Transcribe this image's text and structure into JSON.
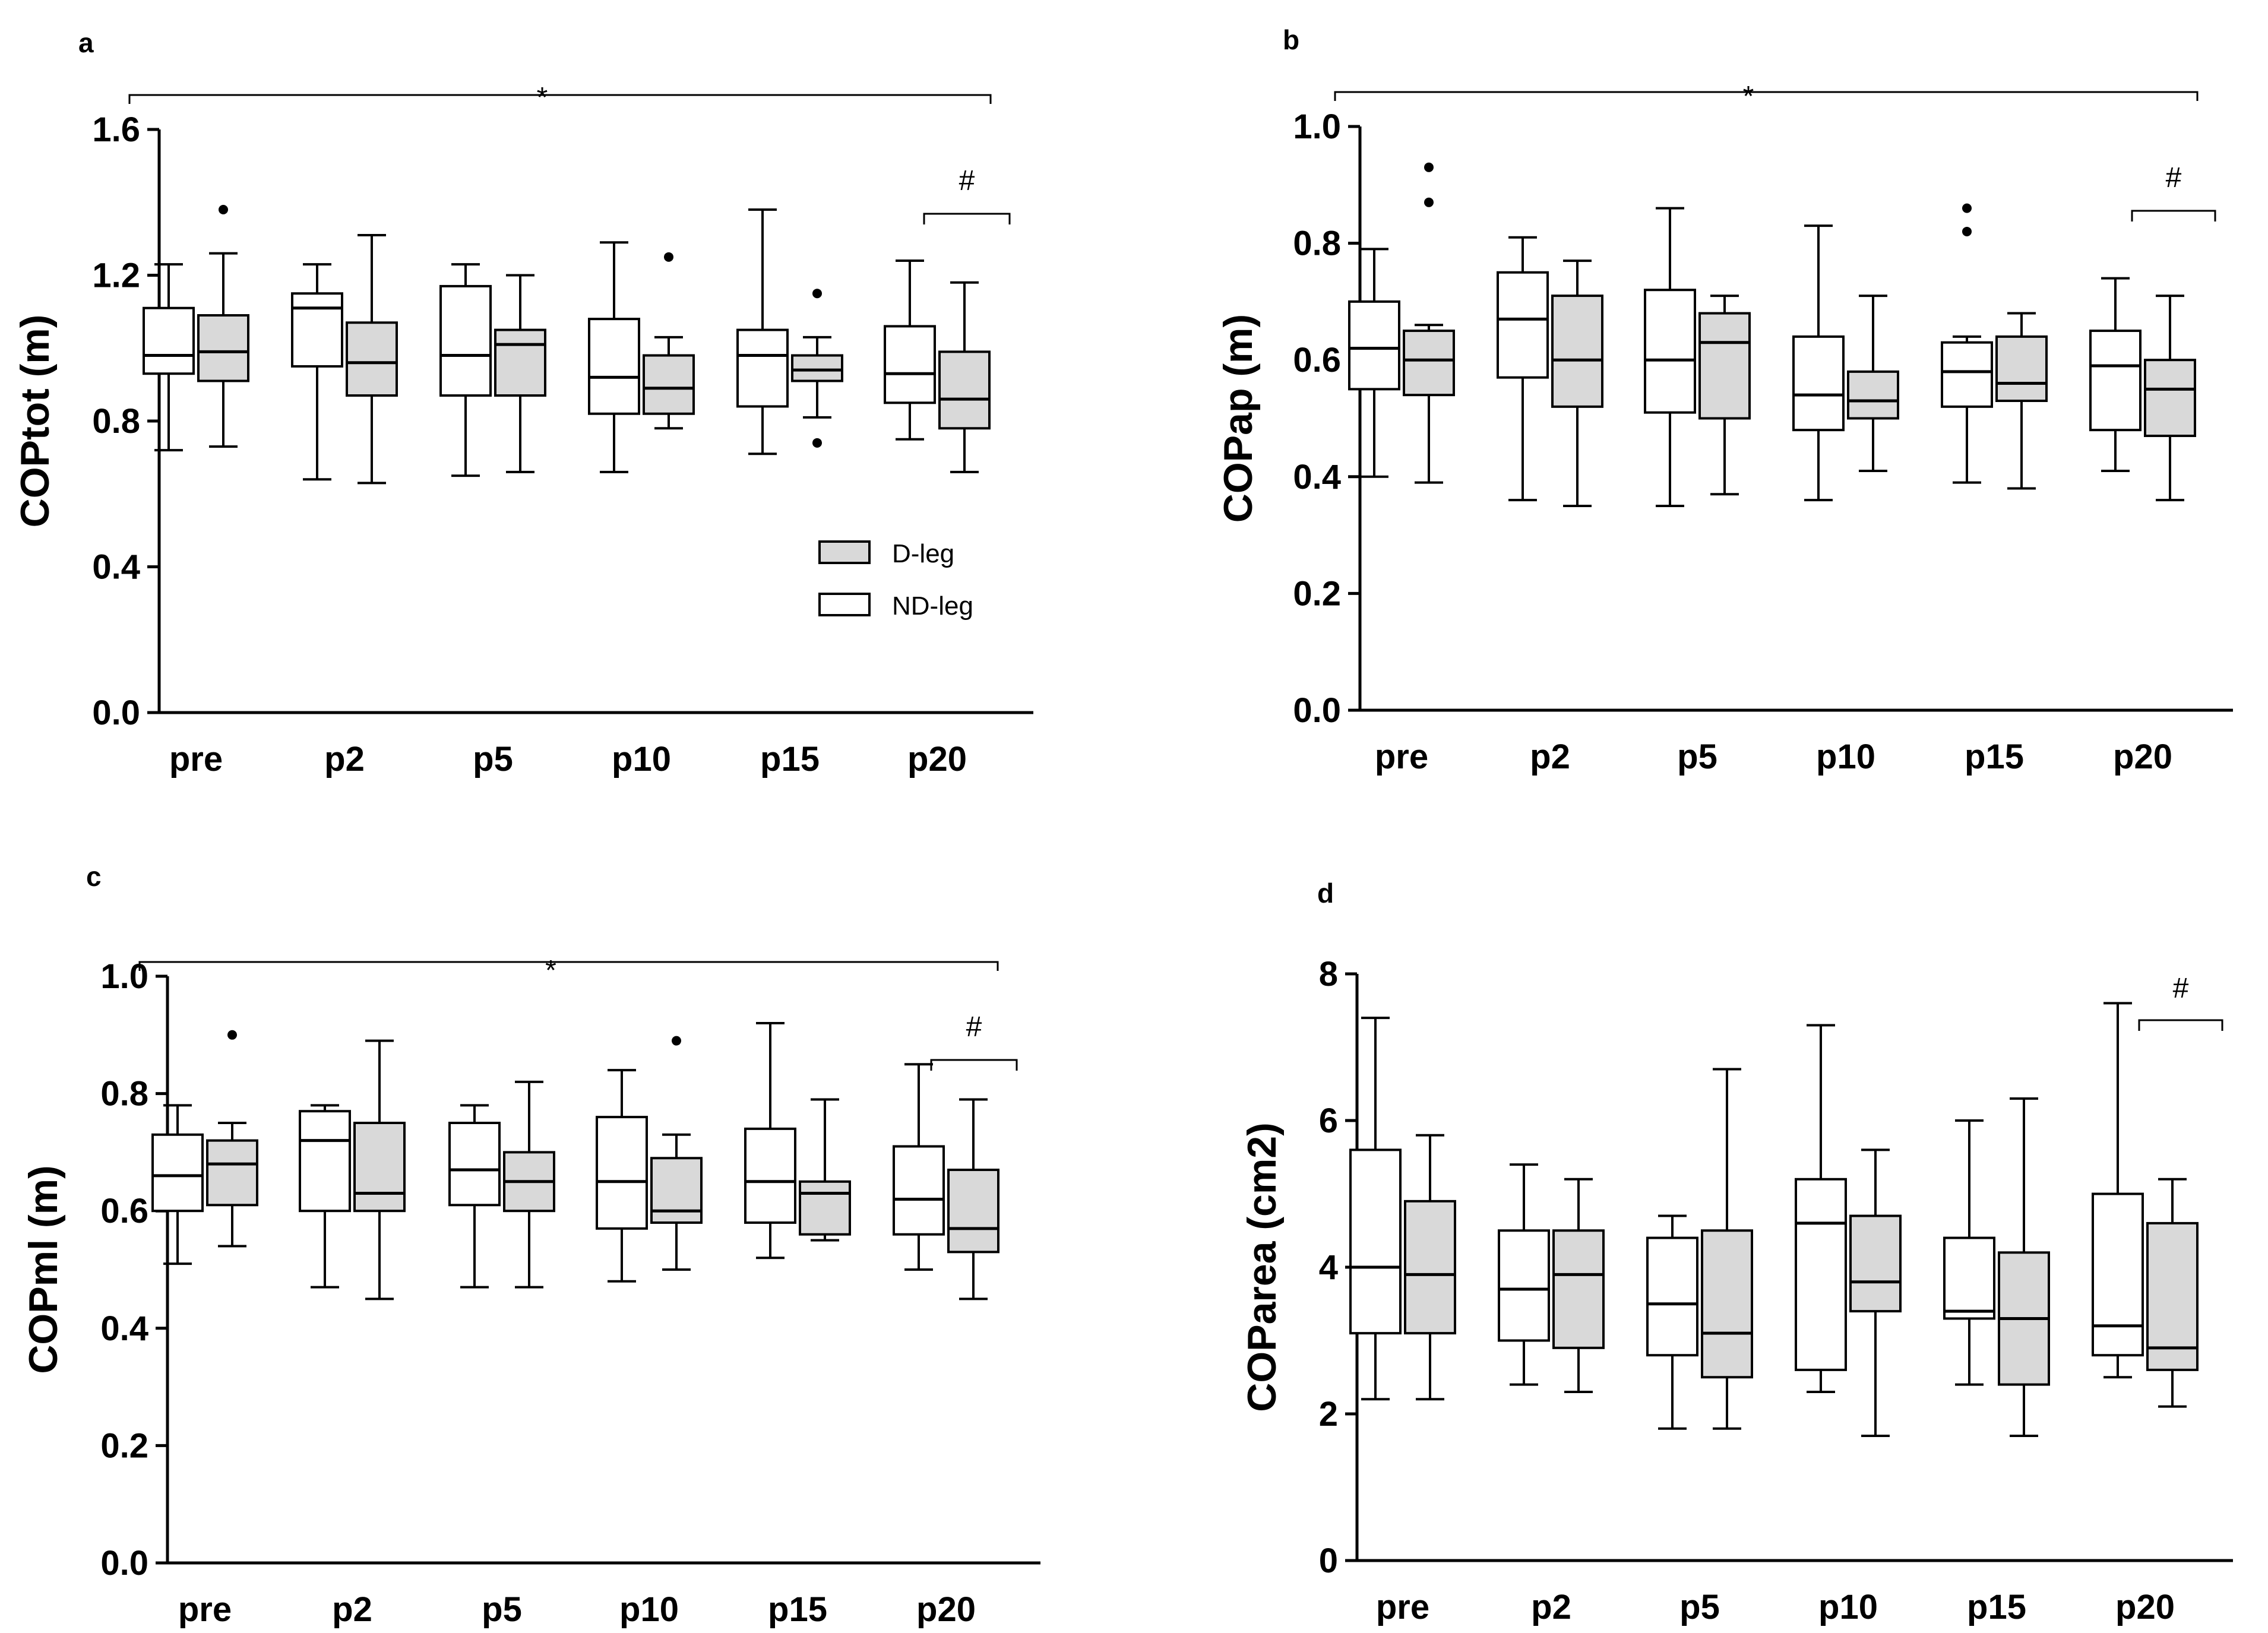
{
  "figure": {
    "legend": {
      "d_leg": "D-leg",
      "nd_leg": "ND-leg"
    }
  },
  "style": {
    "d_leg_fill": "#d9d9d9",
    "nd_leg_fill": "#ffffff",
    "stroke": "#000000"
  },
  "chart_data": [
    {
      "id": "a",
      "type": "boxplot",
      "panel_label": "a",
      "ylabel": "COPtot (m)",
      "ylim": [
        0,
        1.6
      ],
      "yticks": [
        0.0,
        0.4,
        0.8,
        1.2,
        1.6
      ],
      "ytick_labels": [
        "0.0",
        "0.4",
        "0.8",
        "1.2",
        "1.6"
      ],
      "categories": [
        "pre",
        "p2",
        "p5",
        "p10",
        "p15",
        "p20"
      ],
      "legend": true,
      "significance": {
        "star": {
          "label": "*",
          "from": "pre",
          "to": "p20"
        },
        "hash": {
          "label": "#",
          "at": "p20"
        }
      },
      "series": [
        {
          "name": "ND-leg",
          "boxes": [
            {
              "min": 0.72,
              "q1": 0.93,
              "median": 0.98,
              "q3": 1.11,
              "max": 1.23,
              "outliers": []
            },
            {
              "min": 0.64,
              "q1": 0.95,
              "median": 1.11,
              "q3": 1.15,
              "max": 1.23,
              "outliers": []
            },
            {
              "min": 0.65,
              "q1": 0.87,
              "median": 0.98,
              "q3": 1.17,
              "max": 1.23,
              "outliers": []
            },
            {
              "min": 0.66,
              "q1": 0.82,
              "median": 0.92,
              "q3": 1.08,
              "max": 1.29,
              "outliers": []
            },
            {
              "min": 0.71,
              "q1": 0.84,
              "median": 0.98,
              "q3": 1.05,
              "max": 1.38,
              "outliers": []
            },
            {
              "min": 0.75,
              "q1": 0.85,
              "median": 0.93,
              "q3": 1.06,
              "max": 1.24,
              "outliers": []
            }
          ]
        },
        {
          "name": "D-leg",
          "boxes": [
            {
              "min": 0.73,
              "q1": 0.91,
              "median": 0.99,
              "q3": 1.09,
              "max": 1.26,
              "outliers": [
                1.38
              ]
            },
            {
              "min": 0.63,
              "q1": 0.87,
              "median": 0.96,
              "q3": 1.07,
              "max": 1.31,
              "outliers": []
            },
            {
              "min": 0.66,
              "q1": 0.87,
              "median": 1.01,
              "q3": 1.05,
              "max": 1.2,
              "outliers": []
            },
            {
              "min": 0.78,
              "q1": 0.82,
              "median": 0.89,
              "q3": 0.98,
              "max": 1.03,
              "outliers": [
                1.25
              ]
            },
            {
              "min": 0.81,
              "q1": 0.91,
              "median": 0.94,
              "q3": 0.98,
              "max": 1.03,
              "outliers": [
                1.15,
                0.74
              ]
            },
            {
              "min": 0.66,
              "q1": 0.78,
              "median": 0.86,
              "q3": 0.99,
              "max": 1.18,
              "outliers": []
            }
          ]
        }
      ]
    },
    {
      "id": "b",
      "type": "boxplot",
      "panel_label": "b",
      "ylabel": "COPap (m)",
      "ylim": [
        0,
        1.0
      ],
      "yticks": [
        0.0,
        0.2,
        0.4,
        0.6,
        0.8,
        1.0
      ],
      "ytick_labels": [
        "0.0",
        "0.2",
        "0.4",
        "0.6",
        "0.8",
        "1.0"
      ],
      "categories": [
        "pre",
        "p2",
        "p5",
        "p10",
        "p15",
        "p20"
      ],
      "legend": false,
      "significance": {
        "star": {
          "label": "*",
          "from": "pre",
          "to": "p20"
        },
        "hash": {
          "label": "#",
          "at": "p20"
        }
      },
      "series": [
        {
          "name": "ND-leg",
          "boxes": [
            {
              "min": 0.4,
              "q1": 0.55,
              "median": 0.62,
              "q3": 0.7,
              "max": 0.79,
              "outliers": []
            },
            {
              "min": 0.36,
              "q1": 0.57,
              "median": 0.67,
              "q3": 0.75,
              "max": 0.81,
              "outliers": []
            },
            {
              "min": 0.35,
              "q1": 0.51,
              "median": 0.6,
              "q3": 0.72,
              "max": 0.86,
              "outliers": []
            },
            {
              "min": 0.36,
              "q1": 0.48,
              "median": 0.54,
              "q3": 0.64,
              "max": 0.83,
              "outliers": []
            },
            {
              "min": 0.39,
              "q1": 0.52,
              "median": 0.58,
              "q3": 0.63,
              "max": 0.64,
              "outliers": [
                0.86,
                0.82
              ]
            },
            {
              "min": 0.41,
              "q1": 0.48,
              "median": 0.59,
              "q3": 0.65,
              "max": 0.74,
              "outliers": []
            }
          ]
        },
        {
          "name": "D-leg",
          "boxes": [
            {
              "min": 0.39,
              "q1": 0.54,
              "median": 0.6,
              "q3": 0.65,
              "max": 0.66,
              "outliers": [
                0.93,
                0.87
              ]
            },
            {
              "min": 0.35,
              "q1": 0.52,
              "median": 0.6,
              "q3": 0.71,
              "max": 0.77,
              "outliers": []
            },
            {
              "min": 0.37,
              "q1": 0.5,
              "median": 0.63,
              "q3": 0.68,
              "max": 0.71,
              "outliers": []
            },
            {
              "min": 0.41,
              "q1": 0.5,
              "median": 0.53,
              "q3": 0.58,
              "max": 0.71,
              "outliers": []
            },
            {
              "min": 0.38,
              "q1": 0.53,
              "median": 0.56,
              "q3": 0.64,
              "max": 0.68,
              "outliers": []
            },
            {
              "min": 0.36,
              "q1": 0.47,
              "median": 0.55,
              "q3": 0.6,
              "max": 0.71,
              "outliers": []
            }
          ]
        }
      ]
    },
    {
      "id": "c",
      "type": "boxplot",
      "panel_label": "c",
      "ylabel": "COPml (m)",
      "ylim": [
        0,
        1.0
      ],
      "yticks": [
        0.0,
        0.2,
        0.4,
        0.6,
        0.8,
        1.0
      ],
      "ytick_labels": [
        "0.0",
        "0.2",
        "0.4",
        "0.6",
        "0.8",
        "1.0"
      ],
      "categories": [
        "pre",
        "p2",
        "p5",
        "p10",
        "p15",
        "p20"
      ],
      "legend": false,
      "significance": {
        "star": {
          "label": "*",
          "from": "pre",
          "to": "p20"
        },
        "hash": {
          "label": "#",
          "at": "p20"
        }
      },
      "series": [
        {
          "name": "ND-leg",
          "boxes": [
            {
              "min": 0.51,
              "q1": 0.6,
              "median": 0.66,
              "q3": 0.73,
              "max": 0.78,
              "outliers": []
            },
            {
              "min": 0.47,
              "q1": 0.6,
              "median": 0.72,
              "q3": 0.77,
              "max": 0.78,
              "outliers": []
            },
            {
              "min": 0.47,
              "q1": 0.61,
              "median": 0.67,
              "q3": 0.75,
              "max": 0.78,
              "outliers": []
            },
            {
              "min": 0.48,
              "q1": 0.57,
              "median": 0.65,
              "q3": 0.76,
              "max": 0.84,
              "outliers": []
            },
            {
              "min": 0.52,
              "q1": 0.58,
              "median": 0.65,
              "q3": 0.74,
              "max": 0.92,
              "outliers": []
            },
            {
              "min": 0.5,
              "q1": 0.56,
              "median": 0.62,
              "q3": 0.71,
              "max": 0.85,
              "outliers": []
            }
          ]
        },
        {
          "name": "D-leg",
          "boxes": [
            {
              "min": 0.54,
              "q1": 0.61,
              "median": 0.68,
              "q3": 0.72,
              "max": 0.75,
              "outliers": [
                0.9
              ]
            },
            {
              "min": 0.45,
              "q1": 0.6,
              "median": 0.63,
              "q3": 0.75,
              "max": 0.89,
              "outliers": []
            },
            {
              "min": 0.47,
              "q1": 0.6,
              "median": 0.65,
              "q3": 0.7,
              "max": 0.82,
              "outliers": []
            },
            {
              "min": 0.5,
              "q1": 0.58,
              "median": 0.6,
              "q3": 0.69,
              "max": 0.73,
              "outliers": [
                0.89
              ]
            },
            {
              "min": 0.55,
              "q1": 0.56,
              "median": 0.63,
              "q3": 0.65,
              "max": 0.79,
              "outliers": []
            },
            {
              "min": 0.45,
              "q1": 0.53,
              "median": 0.57,
              "q3": 0.67,
              "max": 0.79,
              "outliers": []
            }
          ]
        }
      ]
    },
    {
      "id": "d",
      "type": "boxplot",
      "panel_label": "d",
      "ylabel": "COParea (cm2)",
      "ylim": [
        0,
        8
      ],
      "yticks": [
        0,
        2,
        4,
        6,
        8
      ],
      "ytick_labels": [
        "0",
        "2",
        "4",
        "6",
        "8"
      ],
      "categories": [
        "pre",
        "p2",
        "p5",
        "p10",
        "p15",
        "p20"
      ],
      "legend": false,
      "significance": {
        "hash": {
          "label": "#",
          "at": "p20"
        }
      },
      "series": [
        {
          "name": "ND-leg",
          "boxes": [
            {
              "min": 2.2,
              "q1": 3.1,
              "median": 4.0,
              "q3": 5.6,
              "max": 7.4,
              "outliers": []
            },
            {
              "min": 2.4,
              "q1": 3.0,
              "median": 3.7,
              "q3": 4.5,
              "max": 5.4,
              "outliers": []
            },
            {
              "min": 1.8,
              "q1": 2.8,
              "median": 3.5,
              "q3": 4.4,
              "max": 4.7,
              "outliers": []
            },
            {
              "min": 2.3,
              "q1": 2.6,
              "median": 4.6,
              "q3": 5.2,
              "max": 7.3,
              "outliers": []
            },
            {
              "min": 2.4,
              "q1": 3.3,
              "median": 3.4,
              "q3": 4.4,
              "max": 6.0,
              "outliers": []
            },
            {
              "min": 2.5,
              "q1": 2.8,
              "median": 3.2,
              "q3": 5.0,
              "max": 7.6,
              "outliers": []
            }
          ]
        },
        {
          "name": "D-leg",
          "boxes": [
            {
              "min": 2.2,
              "q1": 3.1,
              "median": 3.9,
              "q3": 4.9,
              "max": 5.8,
              "outliers": []
            },
            {
              "min": 2.3,
              "q1": 2.9,
              "median": 3.9,
              "q3": 4.5,
              "max": 5.2,
              "outliers": []
            },
            {
              "min": 1.8,
              "q1": 2.5,
              "median": 3.1,
              "q3": 4.5,
              "max": 6.7,
              "outliers": []
            },
            {
              "min": 1.7,
              "q1": 3.4,
              "median": 3.8,
              "q3": 4.7,
              "max": 5.6,
              "outliers": []
            },
            {
              "min": 1.7,
              "q1": 2.4,
              "median": 3.3,
              "q3": 4.2,
              "max": 6.3,
              "outliers": []
            },
            {
              "min": 2.1,
              "q1": 2.6,
              "median": 2.9,
              "q3": 4.6,
              "max": 5.2,
              "outliers": []
            }
          ]
        }
      ]
    }
  ]
}
